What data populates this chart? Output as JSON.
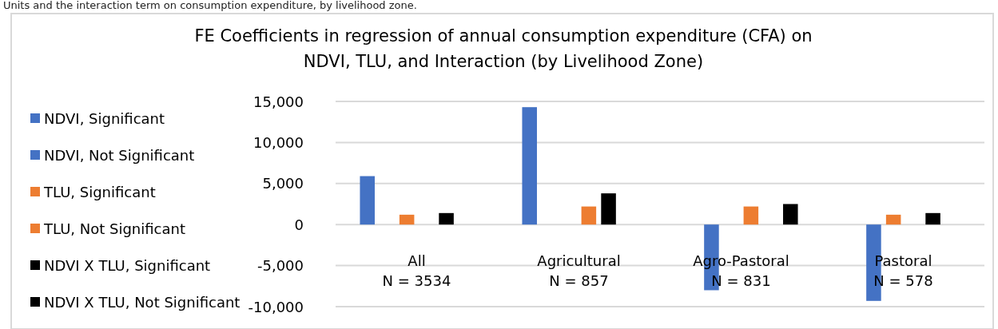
{
  "chart_data": {
    "type": "bar",
    "title": "FE Coefficients in regression of annual consumption expenditure (CFA) on\nNDVI, TLU, and Interaction (by Livelihood Zone)",
    "annotations": [
      "Units and the interaction term on consumption expenditure, by livelihood zone."
    ],
    "categories": [
      "All\nN = 3534",
      "Agricultural\nN = 857",
      "Agro-Pastoral\nN = 831",
      "Pastoral\nN = 578"
    ],
    "series": [
      {
        "name": "NDVI, Significant",
        "color": "#4472c4",
        "values": [
          5900,
          14300,
          null,
          null
        ]
      },
      {
        "name": "NDVI, Not Significant",
        "color": "#4472c4",
        "values": [
          null,
          null,
          -8000,
          -9300
        ]
      },
      {
        "name": "TLU, Significant",
        "color": "#ed7d31",
        "values": [
          1200,
          null,
          null,
          1200
        ]
      },
      {
        "name": "TLU, Not Significant",
        "color": "#ed7d31",
        "values": [
          null,
          2200,
          2200,
          null
        ]
      },
      {
        "name": "NDVI X TLU, Significant",
        "color": "#000000",
        "values": [
          1400,
          3800,
          null,
          1400
        ]
      },
      {
        "name": "NDVI X TLU, Not Significant",
        "color": "#000000",
        "values": [
          null,
          null,
          2500,
          null
        ]
      }
    ],
    "ylim": [
      -10000,
      15000
    ],
    "yticks": [
      {
        "value": -10000,
        "label": "-10,000"
      },
      {
        "value": -5000,
        "label": "-5,000"
      },
      0,
      {
        "value": 5000,
        "label": "5,000"
      },
      {
        "value": 10000,
        "label": "10,000"
      },
      {
        "value": 15000,
        "label": "15,000"
      }
    ],
    "grid": "y",
    "legend": "left"
  }
}
